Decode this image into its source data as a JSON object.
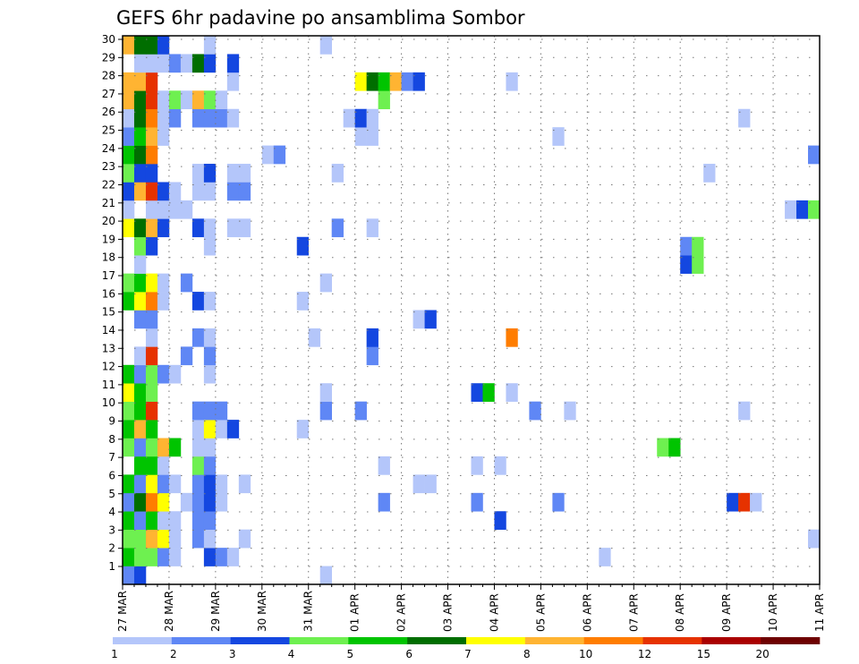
{
  "chart_data": {
    "type": "heatmap",
    "title": "GEFS 6hr padavine po ansamblima Sombor",
    "xlabel": "",
    "ylabel": "",
    "x_tick_labels": [
      "27 MAR",
      "28 MAR",
      "29 MAR",
      "30 MAR",
      "31 MAR",
      "01 APR",
      "02 APR",
      "03 APR",
      "04 APR",
      "05 APR",
      "06 APR",
      "07 APR",
      "08 APR",
      "09 APR",
      "10 APR",
      "11 APR"
    ],
    "steps_per_day": 4,
    "n_steps": 60,
    "y_tick_labels": [
      "1",
      "2",
      "3",
      "4",
      "5",
      "6",
      "7",
      "8",
      "9",
      "10",
      "11",
      "12",
      "13",
      "14",
      "15",
      "16",
      "17",
      "18",
      "19",
      "20",
      "21",
      "22",
      "23",
      "24",
      "25",
      "26",
      "27",
      "28",
      "29",
      "30"
    ],
    "ylim": [
      0,
      30
    ],
    "grid": true,
    "colorbar": {
      "labels": [
        "1",
        "2",
        "3",
        "4",
        "5",
        "6",
        "7",
        "8",
        "10",
        "12",
        "15",
        "20"
      ],
      "colors": [
        "#b4c6fa",
        "#5f87f5",
        "#1447e0",
        "#6ef050",
        "#00c400",
        "#006e00",
        "#ffff00",
        "#ffb432",
        "#ff7d00",
        "#e63200",
        "#aa0000",
        "#6e0000"
      ],
      "placement": "bottom"
    },
    "cells_note": "member: [step, level-index] pairs; level index 1..12 into colorbar bins",
    "members": {
      "30": [
        [
          0,
          8
        ],
        [
          1,
          6
        ],
        [
          2,
          6
        ],
        [
          3,
          3
        ],
        [
          7,
          1
        ],
        [
          17,
          1
        ]
      ],
      "29": [
        [
          1,
          1
        ],
        [
          2,
          1
        ],
        [
          3,
          1
        ],
        [
          4,
          2
        ],
        [
          5,
          1
        ],
        [
          6,
          6
        ],
        [
          7,
          3
        ],
        [
          9,
          3
        ]
      ],
      "28": [
        [
          0,
          8
        ],
        [
          1,
          8
        ],
        [
          2,
          10
        ],
        [
          9,
          1
        ],
        [
          20,
          7
        ],
        [
          21,
          6
        ],
        [
          22,
          5
        ],
        [
          23,
          8
        ],
        [
          24,
          2
        ],
        [
          25,
          3
        ],
        [
          33,
          1
        ]
      ],
      "27": [
        [
          0,
          8
        ],
        [
          1,
          6
        ],
        [
          2,
          10
        ],
        [
          3,
          1
        ],
        [
          4,
          4
        ],
        [
          5,
          1
        ],
        [
          6,
          8
        ],
        [
          7,
          4
        ],
        [
          8,
          1
        ],
        [
          22,
          4
        ]
      ],
      "26": [
        [
          0,
          1
        ],
        [
          1,
          6
        ],
        [
          2,
          9
        ],
        [
          3,
          1
        ],
        [
          4,
          2
        ],
        [
          6,
          2
        ],
        [
          7,
          2
        ],
        [
          8,
          2
        ],
        [
          9,
          1
        ],
        [
          19,
          1
        ],
        [
          20,
          3
        ],
        [
          21,
          1
        ],
        [
          53,
          1
        ]
      ],
      "25": [
        [
          0,
          2
        ],
        [
          1,
          5
        ],
        [
          2,
          8
        ],
        [
          3,
          1
        ],
        [
          20,
          1
        ],
        [
          21,
          1
        ],
        [
          37,
          1
        ]
      ],
      "24": [
        [
          0,
          5
        ],
        [
          1,
          6
        ],
        [
          2,
          9
        ],
        [
          12,
          1
        ],
        [
          13,
          2
        ],
        [
          59,
          2
        ]
      ],
      "23": [
        [
          0,
          4
        ],
        [
          1,
          3
        ],
        [
          2,
          3
        ],
        [
          6,
          1
        ],
        [
          7,
          3
        ],
        [
          9,
          1
        ],
        [
          10,
          1
        ],
        [
          18,
          1
        ],
        [
          50,
          1
        ]
      ],
      "22": [
        [
          0,
          3
        ],
        [
          1,
          8
        ],
        [
          2,
          10
        ],
        [
          3,
          3
        ],
        [
          4,
          1
        ],
        [
          6,
          1
        ],
        [
          7,
          1
        ],
        [
          9,
          2
        ],
        [
          10,
          2
        ]
      ],
      "21": [
        [
          0,
          1
        ],
        [
          2,
          1
        ],
        [
          3,
          1
        ],
        [
          4,
          1
        ],
        [
          5,
          1
        ],
        [
          57,
          1
        ],
        [
          58,
          3
        ],
        [
          59,
          4
        ]
      ],
      "20": [
        [
          0,
          7
        ],
        [
          1,
          6
        ],
        [
          2,
          8
        ],
        [
          3,
          3
        ],
        [
          6,
          3
        ],
        [
          7,
          1
        ],
        [
          9,
          1
        ],
        [
          10,
          1
        ],
        [
          18,
          2
        ],
        [
          21,
          1
        ]
      ],
      "19": [
        [
          1,
          4
        ],
        [
          2,
          3
        ],
        [
          7,
          1
        ],
        [
          15,
          3
        ],
        [
          48,
          2
        ],
        [
          49,
          4
        ]
      ],
      "18": [
        [
          1,
          1
        ],
        [
          48,
          3
        ],
        [
          49,
          4
        ]
      ],
      "17": [
        [
          0,
          4
        ],
        [
          1,
          5
        ],
        [
          2,
          7
        ],
        [
          3,
          1
        ],
        [
          5,
          2
        ],
        [
          17,
          1
        ]
      ],
      "16": [
        [
          0,
          5
        ],
        [
          1,
          7
        ],
        [
          2,
          9
        ],
        [
          3,
          1
        ],
        [
          6,
          3
        ],
        [
          7,
          1
        ],
        [
          15,
          1
        ]
      ],
      "15": [
        [
          1,
          2
        ],
        [
          2,
          2
        ],
        [
          25,
          1
        ],
        [
          26,
          3
        ]
      ],
      "14": [
        [
          2,
          1
        ],
        [
          6,
          2
        ],
        [
          7,
          1
        ],
        [
          16,
          1
        ],
        [
          21,
          3
        ],
        [
          33,
          9
        ]
      ],
      "13": [
        [
          1,
          1
        ],
        [
          2,
          10
        ],
        [
          5,
          2
        ],
        [
          7,
          2
        ],
        [
          21,
          2
        ]
      ],
      "12": [
        [
          0,
          5
        ],
        [
          1,
          2
        ],
        [
          2,
          4
        ],
        [
          3,
          2
        ],
        [
          4,
          1
        ],
        [
          7,
          1
        ]
      ],
      "11": [
        [
          0,
          7
        ],
        [
          1,
          5
        ],
        [
          2,
          4
        ],
        [
          17,
          1
        ],
        [
          30,
          3
        ],
        [
          31,
          5
        ],
        [
          33,
          1
        ]
      ],
      "10": [
        [
          0,
          4
        ],
        [
          1,
          5
        ],
        [
          2,
          10
        ],
        [
          6,
          2
        ],
        [
          7,
          2
        ],
        [
          8,
          2
        ],
        [
          17,
          2
        ],
        [
          20,
          2
        ],
        [
          35,
          2
        ],
        [
          38,
          1
        ],
        [
          53,
          1
        ]
      ],
      "9": [
        [
          0,
          5
        ],
        [
          1,
          8
        ],
        [
          2,
          5
        ],
        [
          6,
          1
        ],
        [
          7,
          7
        ],
        [
          8,
          1
        ],
        [
          9,
          3
        ],
        [
          15,
          1
        ]
      ],
      "8": [
        [
          0,
          4
        ],
        [
          1,
          2
        ],
        [
          2,
          4
        ],
        [
          3,
          8
        ],
        [
          4,
          5
        ],
        [
          6,
          1
        ],
        [
          7,
          1
        ],
        [
          46,
          4
        ],
        [
          47,
          5
        ]
      ],
      "7": [
        [
          1,
          5
        ],
        [
          2,
          5
        ],
        [
          3,
          1
        ],
        [
          6,
          4
        ],
        [
          7,
          2
        ],
        [
          22,
          1
        ],
        [
          30,
          1
        ],
        [
          32,
          1
        ]
      ],
      "6": [
        [
          0,
          5
        ],
        [
          1,
          2
        ],
        [
          2,
          7
        ],
        [
          3,
          2
        ],
        [
          4,
          1
        ],
        [
          6,
          2
        ],
        [
          7,
          3
        ],
        [
          8,
          1
        ],
        [
          10,
          1
        ],
        [
          25,
          1
        ],
        [
          26,
          1
        ]
      ],
      "5": [
        [
          0,
          2
        ],
        [
          1,
          6
        ],
        [
          2,
          9
        ],
        [
          3,
          7
        ],
        [
          5,
          1
        ],
        [
          6,
          2
        ],
        [
          7,
          3
        ],
        [
          8,
          1
        ],
        [
          22,
          2
        ],
        [
          30,
          2
        ],
        [
          37,
          2
        ],
        [
          52,
          3
        ],
        [
          53,
          10
        ],
        [
          54,
          1
        ]
      ],
      "4": [
        [
          0,
          5
        ],
        [
          1,
          2
        ],
        [
          2,
          5
        ],
        [
          3,
          1
        ],
        [
          4,
          1
        ],
        [
          6,
          2
        ],
        [
          7,
          2
        ],
        [
          32,
          3
        ]
      ],
      "3": [
        [
          0,
          4
        ],
        [
          1,
          4
        ],
        [
          2,
          8
        ],
        [
          3,
          7
        ],
        [
          4,
          1
        ],
        [
          6,
          2
        ],
        [
          7,
          1
        ],
        [
          10,
          1
        ],
        [
          59,
          1
        ]
      ],
      "2": [
        [
          0,
          5
        ],
        [
          1,
          4
        ],
        [
          2,
          4
        ],
        [
          3,
          2
        ],
        [
          4,
          1
        ],
        [
          7,
          3
        ],
        [
          8,
          2
        ],
        [
          9,
          1
        ],
        [
          41,
          1
        ]
      ],
      "1": [
        [
          0,
          2
        ],
        [
          1,
          3
        ],
        [
          17,
          1
        ]
      ]
    }
  }
}
